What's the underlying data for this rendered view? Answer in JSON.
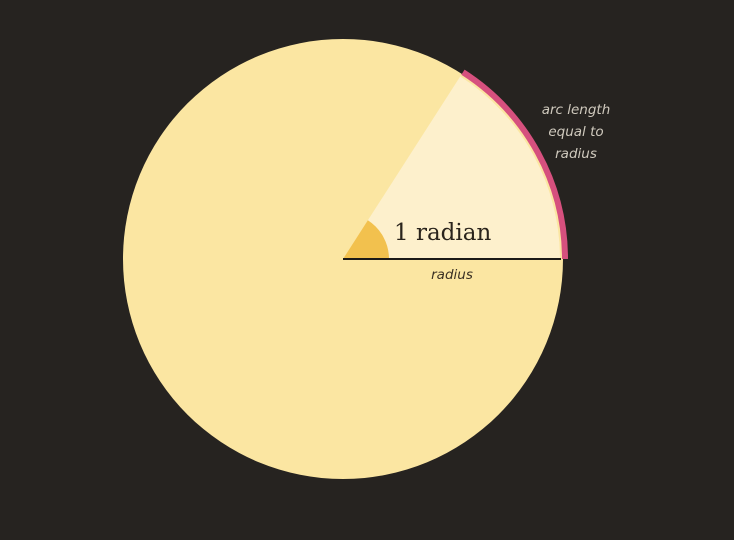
{
  "diagram": {
    "angle_label": "1 radian",
    "radius_label": "radius",
    "arc_label_lines": [
      "arc length",
      "equal to",
      "radius"
    ],
    "angle_radians": 1
  },
  "colors": {
    "background": "#262320",
    "circle_fill": "#fbe6a2",
    "sector_fill": "#fdf0cc",
    "arc_highlight": "#d6507e",
    "angle_marker": "#f2c14e",
    "radius_line": "#1c1a17",
    "radius_label": "#3a3124",
    "arc_label": "#cfc9bd"
  }
}
